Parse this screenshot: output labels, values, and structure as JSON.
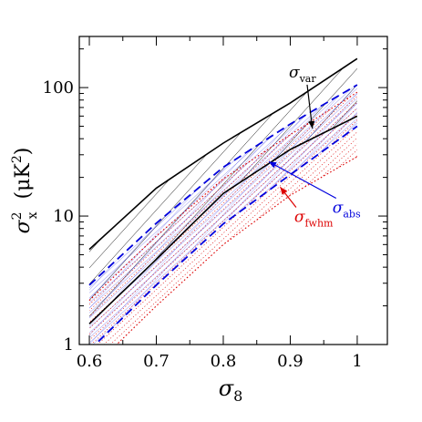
{
  "chart_data": {
    "type": "line",
    "xlabel": "σ",
    "xlabel_sub": "8",
    "ylabel": "σ",
    "ylabel_sup": "2",
    "ylabel_sub": "x",
    "ylabel_unit": "(μK",
    "ylabel_unit_sup": "2",
    "ylabel_unit_close": ")",
    "xlim": [
      0.585,
      1.045
    ],
    "ylim": [
      1,
      250
    ],
    "yscale": "log",
    "x_ticks": [
      0.6,
      0.7,
      0.8,
      0.9,
      1.0
    ],
    "x_tick_labels": [
      "0.6",
      "0.7",
      "0.8",
      "0.9",
      "1"
    ],
    "y_ticks": [
      1,
      10,
      100
    ],
    "y_tick_labels": [
      "1",
      "10",
      "100"
    ],
    "grid": false,
    "legend": "none",
    "x": [
      0.6,
      0.7,
      0.8,
      0.9,
      1.0
    ],
    "series": [
      {
        "id": "center",
        "style": "solid",
        "color": "#000000",
        "values": [
          1.45,
          4.6,
          15.0,
          33.0,
          60.0
        ]
      },
      {
        "id": "var_upper",
        "style": "solid",
        "color": "#000000",
        "values": [
          5.5,
          16.5,
          37.0,
          76.0,
          168.0
        ]
      },
      {
        "id": "abs_upper",
        "style": "dashed",
        "color": "#0000dd",
        "values": [
          2.9,
          8.8,
          24.0,
          52.0,
          105.0
        ]
      },
      {
        "id": "abs_lower",
        "style": "dashed",
        "color": "#0000dd",
        "values": [
          0.9,
          2.9,
          8.7,
          21.0,
          50.0
        ]
      },
      {
        "id": "fwhm_upper",
        "style": "dotted",
        "color": "#dd0000",
        "values": [
          2.2,
          7.0,
          19.5,
          43.0,
          92.0
        ]
      },
      {
        "id": "fwhm_lower",
        "style": "dotted",
        "color": "#dd0000",
        "values": [
          0.62,
          2.0,
          6.0,
          14.5,
          29.0
        ]
      }
    ],
    "bands": [
      {
        "id": "var_band",
        "upper": "var_upper",
        "lower": "center",
        "color": "#000000",
        "hatch": "diagonal"
      },
      {
        "id": "abs_band",
        "upper": "abs_upper",
        "lower": "abs_lower",
        "color": "#0000dd",
        "hatch": "cross"
      },
      {
        "id": "fwhm_band",
        "upper": "fwhm_upper",
        "lower": "fwhm_lower",
        "color": "#dd0000",
        "hatch": "dotted-diagonal"
      }
    ],
    "annotations": [
      {
        "id": "var",
        "text": "σ",
        "sub": "var",
        "color": "#000000",
        "at": [
          0.898,
          120
        ]
      },
      {
        "id": "abs",
        "text": "σ",
        "sub": "abs",
        "color": "#0000dd",
        "at": [
          0.963,
          10.6
        ]
      },
      {
        "id": "fwhm",
        "text": "σ",
        "sub": "fwhm",
        "color": "#dd0000",
        "at": [
          0.906,
          9.0
        ]
      }
    ],
    "colors": {
      "axis": "#000000",
      "var": "#000000",
      "abs": "#0000dd",
      "fwhm": "#dd0000"
    }
  }
}
